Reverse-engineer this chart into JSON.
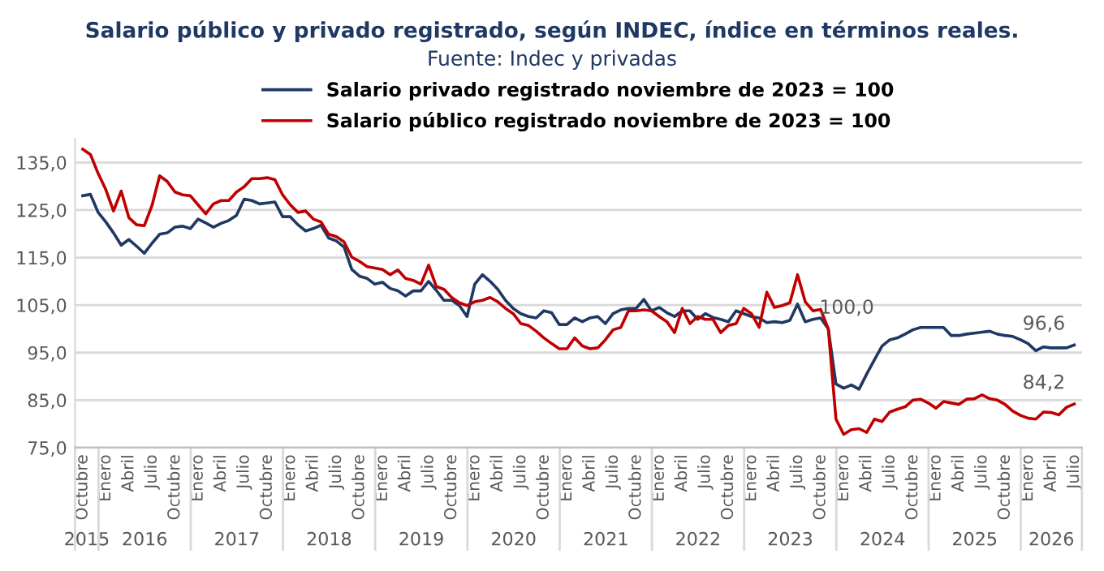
{
  "chart_data": {
    "type": "line",
    "title": "Salario público y privado registrado, según INDEC, índice en términos reales.",
    "subtitle": "Fuente: Indec y privadas",
    "x": [
      "2015-10",
      "2015-11",
      "2015-12",
      "2016-01",
      "2016-02",
      "2016-03",
      "2016-04",
      "2016-05",
      "2016-06",
      "2016-07",
      "2016-08",
      "2016-09",
      "2016-10",
      "2016-11",
      "2016-12",
      "2017-01",
      "2017-02",
      "2017-03",
      "2017-04",
      "2017-05",
      "2017-06",
      "2017-07",
      "2017-08",
      "2017-09",
      "2017-10",
      "2017-11",
      "2017-12",
      "2018-01",
      "2018-02",
      "2018-03",
      "2018-04",
      "2018-05",
      "2018-06",
      "2018-07",
      "2018-08",
      "2018-09",
      "2018-10",
      "2018-11",
      "2018-12",
      "2019-01",
      "2019-02",
      "2019-03",
      "2019-04",
      "2019-05",
      "2019-06",
      "2019-07",
      "2019-08",
      "2019-09",
      "2019-10",
      "2019-11",
      "2019-12",
      "2020-01",
      "2020-02",
      "2020-03",
      "2020-04",
      "2020-05",
      "2020-06",
      "2020-07",
      "2020-08",
      "2020-09",
      "2020-10",
      "2020-11",
      "2020-12",
      "2021-01",
      "2021-02",
      "2021-03",
      "2021-04",
      "2021-05",
      "2021-06",
      "2021-07",
      "2021-08",
      "2021-09",
      "2021-10",
      "2021-11",
      "2021-12",
      "2022-01",
      "2022-02",
      "2022-03",
      "2022-04",
      "2022-05",
      "2022-06",
      "2022-07",
      "2022-08",
      "2022-09",
      "2022-10",
      "2022-11",
      "2022-12",
      "2023-01",
      "2023-02",
      "2023-03",
      "2023-04",
      "2023-05",
      "2023-06",
      "2023-07",
      "2023-08",
      "2023-09",
      "2023-10",
      "2023-11",
      "2023-12",
      "2024-01",
      "2024-02",
      "2024-03",
      "2024-04",
      "2024-05",
      "2024-06",
      "2024-07",
      "2024-08",
      "2024-09",
      "2024-10",
      "2024-11",
      "2024-12",
      "2025-01",
      "2025-02",
      "2025-03",
      "2025-04",
      "2025-05",
      "2025-06",
      "2025-07",
      "2025-08",
      "2025-09",
      "2025-10",
      "2025-11",
      "2025-12",
      "2026-01",
      "2026-02",
      "2026-03",
      "2026-04",
      "2026-05",
      "2026-06",
      "2026-07"
    ],
    "series": [
      {
        "name": "Salario privado registrado noviembre de 2023 = 100",
        "color": "#1f3864",
        "values": [
          128.0,
          128.3,
          124.5,
          122.5,
          120.2,
          117.6,
          118.8,
          117.4,
          115.9,
          118.0,
          119.9,
          120.2,
          121.4,
          121.6,
          121.1,
          123.1,
          122.3,
          121.4,
          122.2,
          122.8,
          123.9,
          127.3,
          127.0,
          126.3,
          126.5,
          126.7,
          123.6,
          123.6,
          121.9,
          120.6,
          121.1,
          121.8,
          119.1,
          118.5,
          117.2,
          112.5,
          111.1,
          110.6,
          109.4,
          109.8,
          108.5,
          108.0,
          106.9,
          108.0,
          108.0,
          110.0,
          108.1,
          106.0,
          106.0,
          104.9,
          102.6,
          109.4,
          111.4,
          110.0,
          108.3,
          106.0,
          104.3,
          103.2,
          102.6,
          102.3,
          103.8,
          103.4,
          100.9,
          100.9,
          102.3,
          101.5,
          102.3,
          102.6,
          101.1,
          103.2,
          104.0,
          104.3,
          104.3,
          106.2,
          103.8,
          104.5,
          103.4,
          102.6,
          103.8,
          103.8,
          102.0,
          103.2,
          102.4,
          102.0,
          101.5,
          103.8,
          103.2,
          102.6,
          102.3,
          101.3,
          101.5,
          101.3,
          101.8,
          105.2,
          101.5,
          102.0,
          102.3,
          100.0,
          88.4,
          87.5,
          88.2,
          87.3,
          90.5,
          93.5,
          96.4,
          97.7,
          98.1,
          98.9,
          99.8,
          100.3,
          100.3,
          100.3,
          100.3,
          98.6,
          98.6,
          98.9,
          99.1,
          99.3,
          99.5,
          98.9,
          98.6,
          98.4,
          97.7,
          96.9,
          95.4,
          96.2,
          96.0,
          96.0,
          96.0,
          96.6
        ]
      },
      {
        "name": "Salario público registrado noviembre de 2023 = 100",
        "color": "#c00000",
        "values": [
          137.8,
          136.7,
          132.7,
          129.3,
          124.8,
          129.0,
          123.4,
          121.9,
          121.7,
          125.9,
          132.2,
          131.0,
          128.8,
          128.2,
          128.0,
          126.1,
          124.2,
          126.3,
          127.0,
          127.0,
          128.8,
          129.9,
          131.6,
          131.6,
          131.8,
          131.4,
          128.2,
          126.1,
          124.5,
          124.8,
          123.1,
          122.5,
          119.9,
          119.4,
          118.3,
          115.1,
          114.2,
          113.1,
          112.8,
          112.5,
          111.4,
          112.4,
          110.6,
          110.2,
          109.4,
          113.4,
          108.9,
          108.3,
          106.6,
          105.5,
          104.9,
          105.7,
          106.0,
          106.6,
          105.7,
          104.3,
          103.2,
          101.1,
          100.7,
          99.5,
          98.1,
          96.9,
          95.8,
          95.8,
          98.1,
          96.4,
          95.8,
          96.0,
          97.7,
          99.8,
          100.3,
          103.8,
          103.8,
          104.0,
          103.8,
          102.6,
          101.5,
          99.2,
          104.3,
          101.1,
          102.6,
          102.0,
          102.0,
          99.2,
          100.7,
          101.1,
          104.3,
          103.2,
          100.3,
          107.7,
          104.5,
          104.9,
          105.5,
          111.4,
          105.7,
          103.8,
          104.1,
          100.0,
          81.0,
          77.8,
          78.8,
          79.0,
          78.2,
          81.0,
          80.5,
          82.5,
          83.1,
          83.6,
          85.0,
          85.2,
          84.4,
          83.3,
          84.7,
          84.4,
          84.1,
          85.2,
          85.3,
          86.1,
          85.3,
          85.0,
          84.1,
          82.7,
          81.8,
          81.2,
          81.0,
          82.5,
          82.4,
          81.9,
          83.5,
          84.2
        ]
      }
    ],
    "xlim": [
      "2015-09",
      "2026-08"
    ],
    "xticks": [
      {
        "value": "2015-10",
        "label": "Octubre"
      },
      {
        "value": "2016-01",
        "label": "Enero"
      },
      {
        "value": "2016-04",
        "label": "Abril"
      },
      {
        "value": "2016-07",
        "label": "Julio"
      },
      {
        "value": "2016-10",
        "label": "Octubre"
      },
      {
        "value": "2017-01",
        "label": "Enero"
      },
      {
        "value": "2017-04",
        "label": "Abril"
      },
      {
        "value": "2017-07",
        "label": "Julio"
      },
      {
        "value": "2017-10",
        "label": "Octubre"
      },
      {
        "value": "2018-01",
        "label": "Enero"
      },
      {
        "value": "2018-04",
        "label": "Abril"
      },
      {
        "value": "2018-07",
        "label": "Julio"
      },
      {
        "value": "2018-10",
        "label": "Octubre"
      },
      {
        "value": "2019-01",
        "label": "Enero"
      },
      {
        "value": "2019-04",
        "label": "Abril"
      },
      {
        "value": "2019-07",
        "label": "Julio"
      },
      {
        "value": "2019-10",
        "label": "Octubre"
      },
      {
        "value": "2020-01",
        "label": "Enero"
      },
      {
        "value": "2020-04",
        "label": "Abril"
      },
      {
        "value": "2020-07",
        "label": "Julio"
      },
      {
        "value": "2020-10",
        "label": "Octubre"
      },
      {
        "value": "2021-01",
        "label": "Enero"
      },
      {
        "value": "2021-04",
        "label": "Abril"
      },
      {
        "value": "2021-07",
        "label": "Julio"
      },
      {
        "value": "2021-10",
        "label": "Octubre"
      },
      {
        "value": "2022-01",
        "label": "Enero"
      },
      {
        "value": "2022-04",
        "label": "Abril"
      },
      {
        "value": "2022-07",
        "label": "Julio"
      },
      {
        "value": "2022-10",
        "label": "Octubre"
      },
      {
        "value": "2023-01",
        "label": "Enero"
      },
      {
        "value": "2023-04",
        "label": "Abril"
      },
      {
        "value": "2023-07",
        "label": "Julio"
      },
      {
        "value": "2023-10",
        "label": "Octubre"
      },
      {
        "value": "2024-01",
        "label": "Enero"
      },
      {
        "value": "2024-04",
        "label": "Abril"
      },
      {
        "value": "2024-07",
        "label": "Julio"
      },
      {
        "value": "2024-10",
        "label": "Octubre"
      },
      {
        "value": "2025-01",
        "label": "Enero"
      },
      {
        "value": "2025-04",
        "label": "Abril"
      },
      {
        "value": "2025-07",
        "label": "Julio"
      },
      {
        "value": "2025-10",
        "label": "Octubre"
      },
      {
        "value": "2026-01",
        "label": "Enero"
      },
      {
        "value": "2026-04",
        "label": "Abril"
      },
      {
        "value": "2026-07",
        "label": "Julio"
      }
    ],
    "ylim": [
      75,
      140
    ],
    "yticks": [
      {
        "value": 75,
        "label": "75,0"
      },
      {
        "value": 85,
        "label": "85,0"
      },
      {
        "value": 95,
        "label": "95,0"
      },
      {
        "value": 105,
        "label": "105,0"
      },
      {
        "value": 115,
        "label": "115,0"
      },
      {
        "value": 125,
        "label": "125,0"
      },
      {
        "value": 135,
        "label": "135,0"
      }
    ],
    "grid": "y",
    "legend": "top",
    "marker": "none",
    "line_style": "solid",
    "annotations": [
      {
        "text": "100,0",
        "x": "2023-11",
        "y": 100
      },
      {
        "text": "96,6",
        "x": "2026-07",
        "y": 96.6
      },
      {
        "text": "84,2",
        "x": "2026-07",
        "y": 84.2
      },
      "2015",
      "2016",
      "2017",
      "2018",
      "2019",
      "2020",
      "2021",
      "2022",
      "2023",
      "2024",
      "2025",
      "2026"
    ]
  }
}
